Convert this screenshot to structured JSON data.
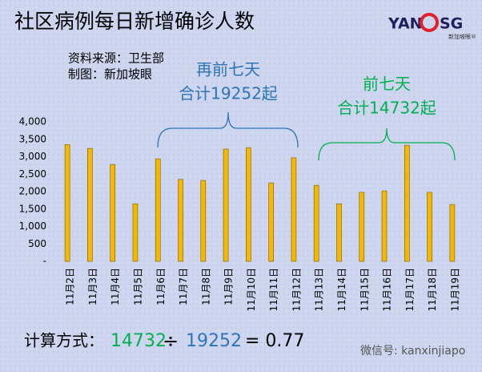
{
  "chart_data": {
    "type": "bar",
    "title": "社区病例每日新增确诊人数",
    "source": "资料来源：卫生部",
    "author": "制图：新加坡眼",
    "annotations": [
      {
        "heading": "再前七天",
        "total": "合计19252起",
        "color": "#2e75b6"
      },
      {
        "heading": "前七天",
        "total": "合计14732起",
        "color": "#00b050"
      }
    ],
    "categories": [
      "11月2日",
      "11月3日",
      "11月4日",
      "11月5日",
      "11月6日",
      "11月7日",
      "11月8日",
      "11月9日",
      "11月10日",
      "11月11日",
      "11月12日",
      "11月13日",
      "11月14日",
      "11月15日",
      "11月16日",
      "11月17日",
      "11月18日",
      "11月19日"
    ],
    "values": [
      3350,
      3240,
      2780,
      1650,
      2940,
      2350,
      2320,
      3220,
      3260,
      2250,
      2970,
      2180,
      1650,
      1980,
      2020,
      3330,
      1980,
      1630
    ],
    "color": "#f5b800",
    "ylim": [
      0,
      4000
    ],
    "yticks": [
      {
        "value": 0,
        "label": "-"
      },
      500,
      {
        "value": 1000,
        "label": "1,000"
      },
      {
        "value": 1500,
        "label": "1,500"
      },
      {
        "value": 2000,
        "label": "2,000"
      },
      {
        "value": 2500,
        "label": "2,500"
      },
      {
        "value": 3000,
        "label": "3,000"
      },
      {
        "value": 3500,
        "label": "3,500"
      },
      {
        "value": 4000,
        "label": "4,000"
      }
    ],
    "grid": false,
    "formula": {
      "label": "计算方式：",
      "numerator": "14732",
      "operator": "÷",
      "denominator": "19252",
      "result": "= 0.77"
    }
  },
  "logo": {
    "left": "YAN",
    "right": "SG",
    "sub": "新加坡眼®"
  },
  "watermark": "微信号: kanxinjiapo"
}
